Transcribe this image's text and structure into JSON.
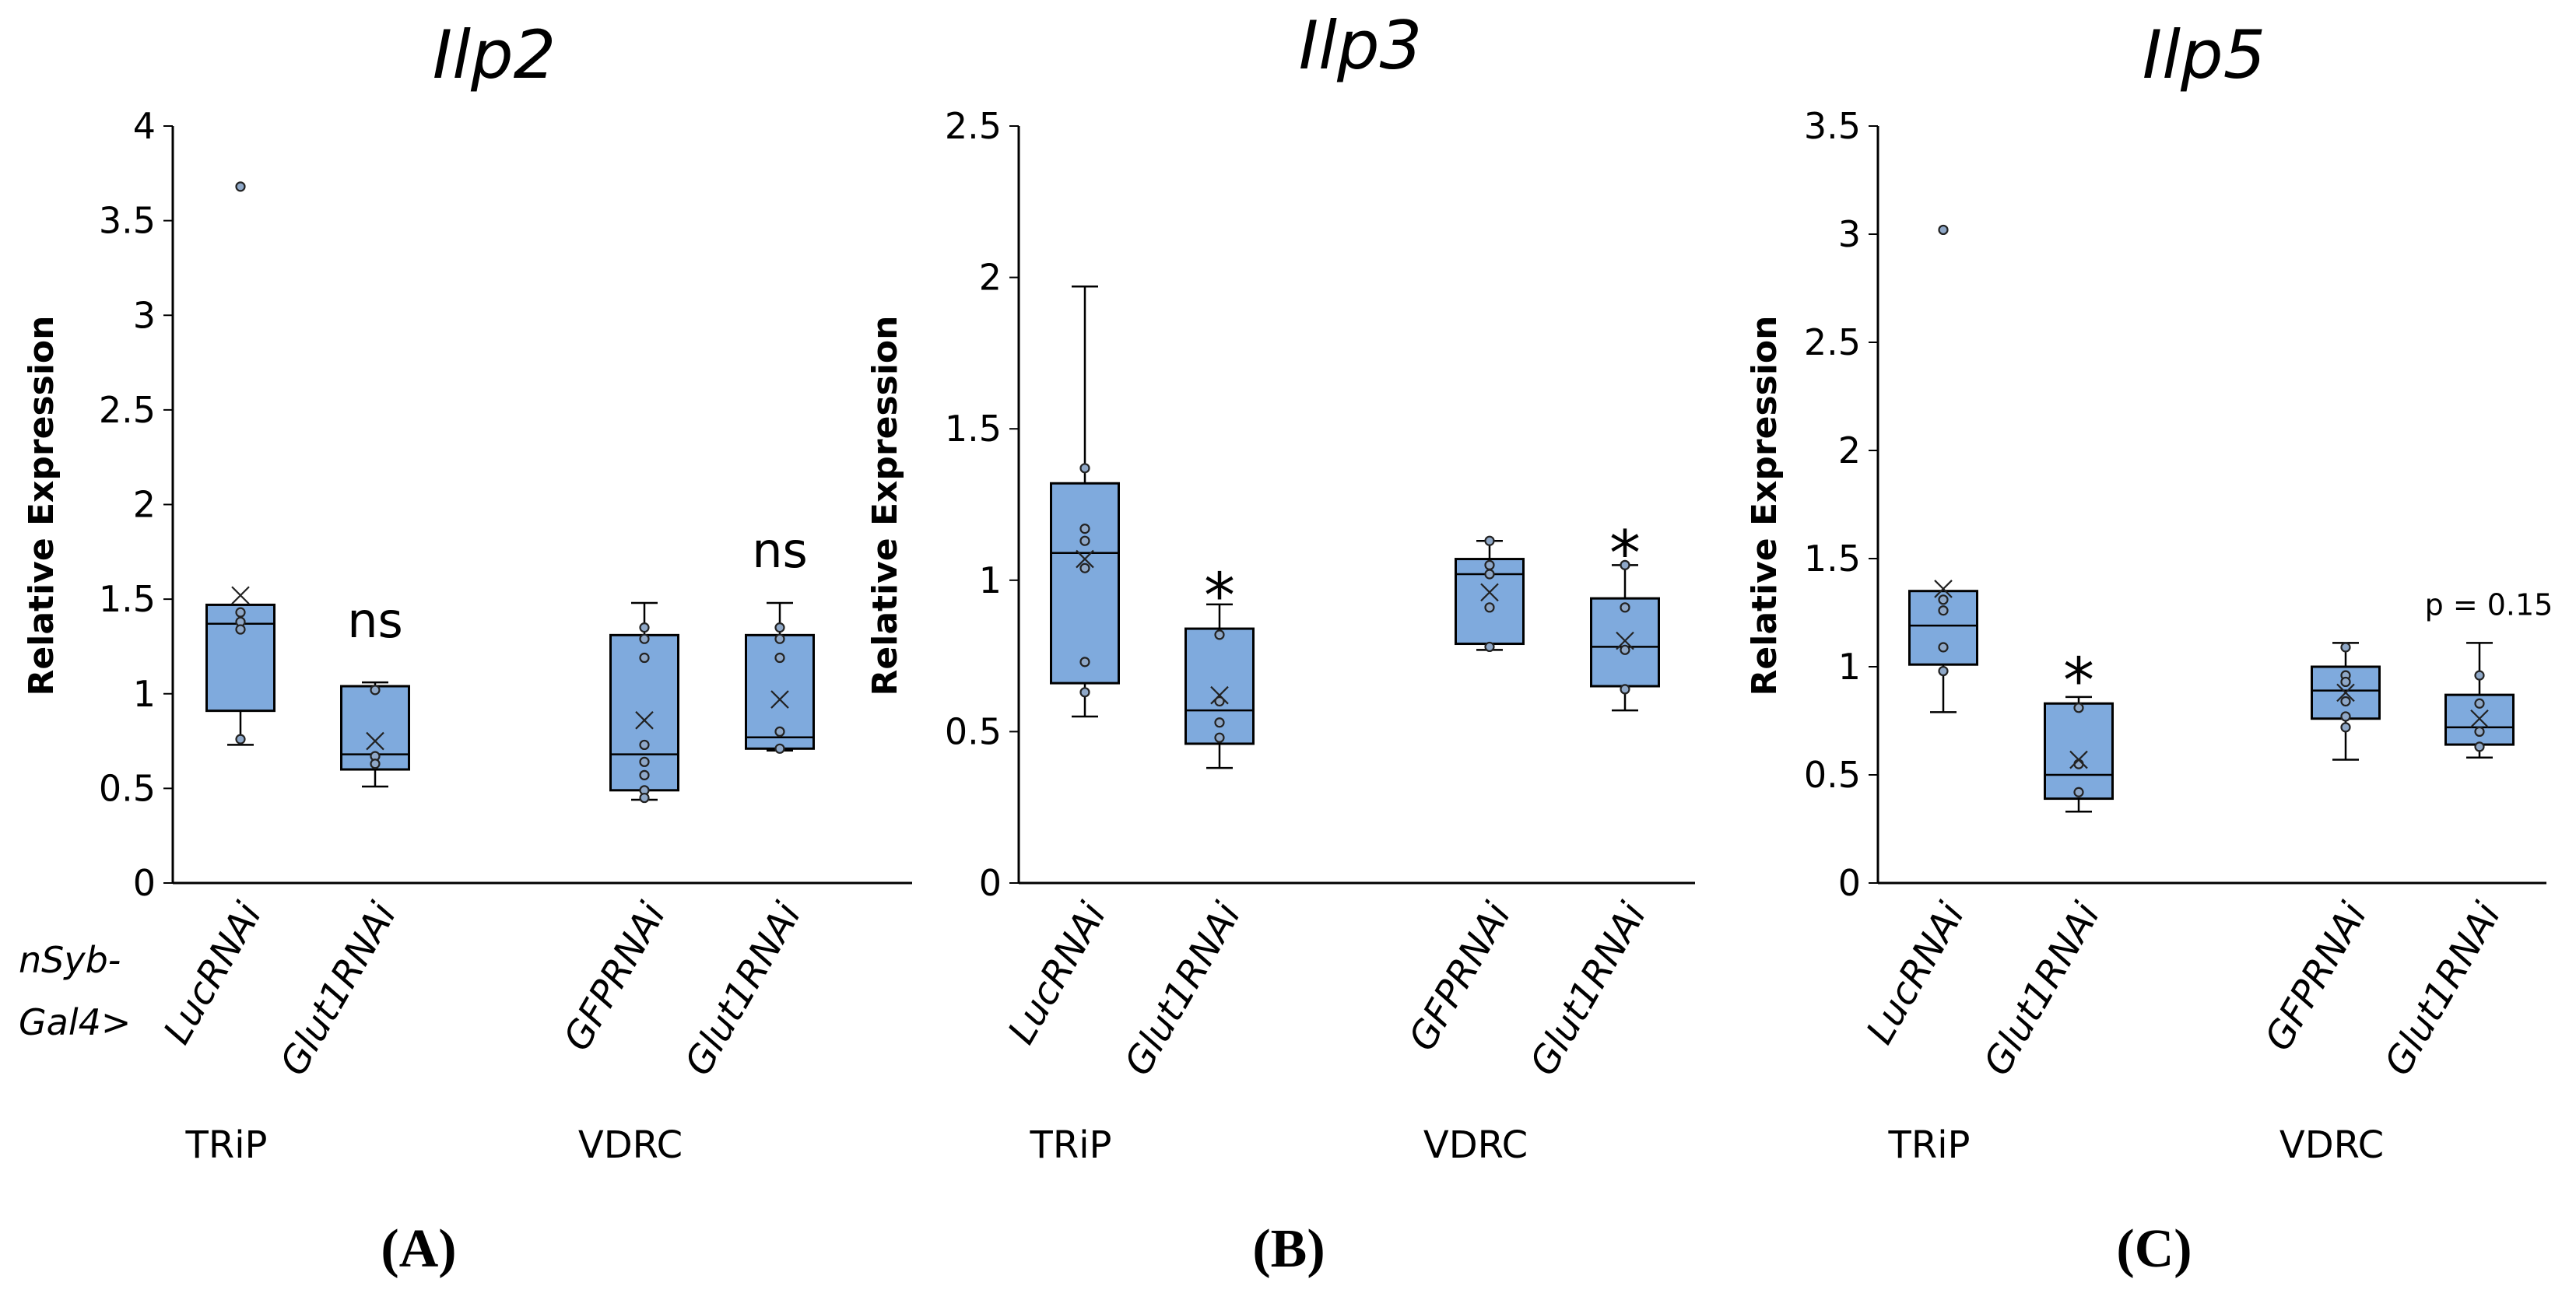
{
  "common": {
    "genotype_prefix_line1": "nSyb-",
    "genotype_prefix_line2": "Gal4>",
    "box_color": "#7FAADD",
    "point_color": "#8FA8C8"
  },
  "chart_data": [
    {
      "type": "box",
      "panel_label": "(A)",
      "title": "Ilp2",
      "ylabel": "Relative Expression",
      "ylim": [
        0,
        4
      ],
      "yticks": [
        "0",
        "0.5",
        "1",
        "1.5",
        "2",
        "2.5",
        "3",
        "3.5",
        "4"
      ],
      "group_labels": [
        "TRiP",
        "VDRC"
      ],
      "boxes": [
        {
          "label": "LucRNAi",
          "group": 0,
          "low": 0.73,
          "q1": 0.91,
          "median": 1.37,
          "q3": 1.47,
          "high": 1.47,
          "mean": 1.52,
          "points": [
            3.68,
            1.43,
            1.38,
            1.34,
            0.76
          ],
          "annotation": ""
        },
        {
          "label": "Glut1RNAi",
          "group": 0,
          "low": 0.51,
          "q1": 0.6,
          "median": 0.68,
          "q3": 1.04,
          "high": 1.06,
          "mean": 0.75,
          "points": [
            1.02,
            0.67,
            0.63
          ],
          "annotation": "ns",
          "annotation_y": 1.3
        },
        {
          "label": "GFPRNAi",
          "group": 1,
          "low": 0.44,
          "q1": 0.49,
          "median": 0.68,
          "q3": 1.31,
          "high": 1.48,
          "mean": 0.86,
          "points": [
            1.35,
            1.29,
            1.19,
            0.73,
            0.64,
            0.57,
            0.49,
            0.45
          ],
          "annotation": ""
        },
        {
          "label": "Glut1RNAi",
          "group": 1,
          "low": 0.7,
          "q1": 0.71,
          "median": 0.77,
          "q3": 1.31,
          "high": 1.48,
          "mean": 0.97,
          "points": [
            1.35,
            1.29,
            1.19,
            0.8,
            0.71
          ],
          "annotation": "ns",
          "annotation_y": 1.67
        }
      ]
    },
    {
      "type": "box",
      "panel_label": "(B)",
      "title": "Ilp3",
      "ylabel": "Relative Expression",
      "ylim": [
        0,
        2.5
      ],
      "yticks": [
        "0",
        "0.5",
        "1",
        "1.5",
        "2",
        "2.5"
      ],
      "group_labels": [
        "TRiP",
        "VDRC"
      ],
      "boxes": [
        {
          "label": "LucRNAi",
          "group": 0,
          "low": 0.55,
          "q1": 0.66,
          "median": 1.09,
          "q3": 1.32,
          "high": 1.97,
          "mean": 1.07,
          "points": [
            1.37,
            1.17,
            1.13,
            1.04,
            0.73,
            0.63
          ],
          "annotation": ""
        },
        {
          "label": "Glut1RNAi",
          "group": 0,
          "low": 0.38,
          "q1": 0.46,
          "median": 0.57,
          "q3": 0.84,
          "high": 0.92,
          "mean": 0.62,
          "points": [
            0.82,
            0.6,
            0.53,
            0.48
          ],
          "annotation": "*",
          "annotation_y": 0.98
        },
        {
          "label": "GFPRNAi",
          "group": 1,
          "low": 0.77,
          "q1": 0.79,
          "median": 1.02,
          "q3": 1.07,
          "high": 1.13,
          "mean": 0.96,
          "points": [
            1.13,
            1.05,
            1.02,
            0.91,
            0.78
          ],
          "annotation": ""
        },
        {
          "label": "Glut1RNAi",
          "group": 1,
          "low": 0.57,
          "q1": 0.65,
          "median": 0.78,
          "q3": 0.94,
          "high": 1.05,
          "mean": 0.8,
          "points": [
            1.05,
            0.91,
            0.77,
            0.64
          ],
          "annotation": "*",
          "annotation_y": 1.12
        }
      ]
    },
    {
      "type": "box",
      "panel_label": "(C)",
      "title": "Ilp5",
      "ylabel": "Relative Expression",
      "ylim": [
        0,
        3.5
      ],
      "yticks": [
        "0",
        "0.5",
        "1",
        "1.5",
        "2",
        "2.5",
        "3",
        "3.5"
      ],
      "group_labels": [
        "TRiP",
        "VDRC"
      ],
      "boxes": [
        {
          "label": "LucRNAi",
          "group": 0,
          "low": 0.79,
          "q1": 1.01,
          "median": 1.19,
          "q3": 1.35,
          "high": 1.35,
          "mean": 1.36,
          "points": [
            3.02,
            1.31,
            1.26,
            1.09,
            0.98
          ],
          "annotation": ""
        },
        {
          "label": "Glut1RNAi",
          "group": 0,
          "low": 0.33,
          "q1": 0.39,
          "median": 0.5,
          "q3": 0.83,
          "high": 0.86,
          "mean": 0.57,
          "points": [
            0.81,
            0.55,
            0.42
          ],
          "annotation": "*",
          "annotation_y": 0.98
        },
        {
          "label": "GFPRNAi",
          "group": 1,
          "low": 0.57,
          "q1": 0.76,
          "median": 0.89,
          "q3": 1.0,
          "high": 1.11,
          "mean": 0.88,
          "points": [
            1.09,
            0.96,
            0.93,
            0.84,
            0.77,
            0.72
          ],
          "annotation": ""
        },
        {
          "label": "Glut1RNAi",
          "group": 1,
          "low": 0.58,
          "q1": 0.64,
          "median": 0.72,
          "q3": 0.87,
          "high": 1.11,
          "mean": 0.76,
          "points": [
            0.96,
            0.83,
            0.7,
            0.63
          ],
          "annotation": "p = 0.15",
          "annotation_y": 1.24
        }
      ]
    }
  ]
}
